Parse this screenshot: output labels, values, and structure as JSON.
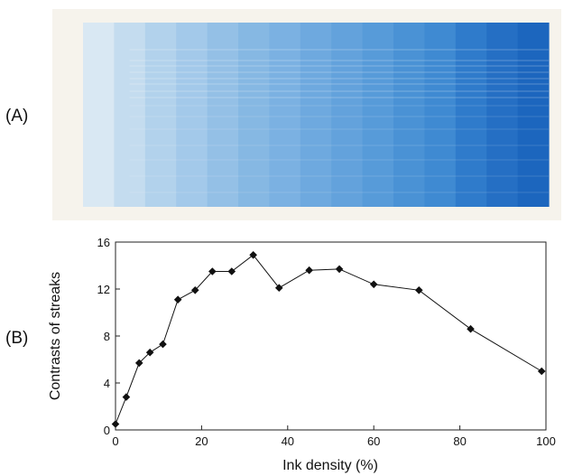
{
  "panels": {
    "a_label": "(A)",
    "b_label": "(B)"
  },
  "strip": {
    "colors": [
      "#d9e8f3",
      "#c4dcef",
      "#b2d2ec",
      "#a3c9ea",
      "#94c0e6",
      "#86b8e3",
      "#7bb1e2",
      "#6ea9df",
      "#63a2dc",
      "#579bd9",
      "#4a92d5",
      "#3f8ad2",
      "#2f7bcb",
      "#256fc4",
      "#1c66be"
    ],
    "paper_color": "#f6f3ec"
  },
  "chart_data": {
    "type": "line",
    "xlabel": "Ink density (%)",
    "ylabel": "Contrasts of streaks",
    "xlim": [
      0,
      100
    ],
    "ylim": [
      0,
      16
    ],
    "xticks": [
      0,
      20,
      40,
      60,
      80,
      100
    ],
    "yticks": [
      0,
      4,
      8,
      12,
      16
    ],
    "marker": "diamond",
    "grid": false,
    "series": [
      {
        "x": [
          0,
          2.5,
          5.5,
          8,
          11,
          14.5,
          18.5,
          22.5,
          27,
          32,
          38,
          45,
          52,
          60,
          70.5,
          82.5,
          99
        ],
        "y": [
          0.5,
          2.8,
          5.7,
          6.6,
          7.3,
          11.1,
          11.9,
          13.5,
          13.5,
          14.9,
          12.1,
          13.6,
          13.7,
          12.4,
          11.9,
          8.6,
          5.0
        ],
        "color": "#111111"
      }
    ]
  }
}
